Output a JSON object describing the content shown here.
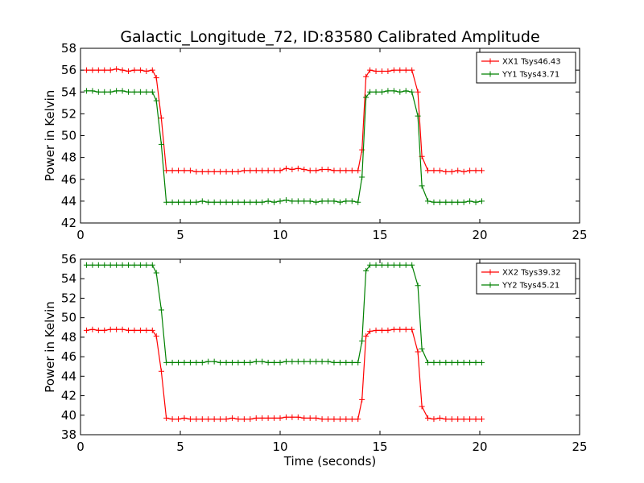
{
  "chart_data": [
    {
      "type": "line",
      "title": "Galactic_Longitude_72, ID:83580 Calibrated Amplitude",
      "xlabel": "",
      "ylabel": "Power in Kelvin",
      "xlim": [
        0,
        25
      ],
      "ylim": [
        42,
        58
      ],
      "xticks": [
        0,
        5,
        10,
        15,
        20,
        25
      ],
      "yticks": [
        42,
        44,
        46,
        48,
        50,
        52,
        54,
        56,
        58
      ],
      "legend_position": "top-right",
      "x": [
        0.3,
        0.6,
        0.9,
        1.2,
        1.5,
        1.8,
        2.1,
        2.4,
        2.7,
        3.0,
        3.3,
        3.6,
        3.8,
        4.05,
        4.3,
        4.6,
        4.9,
        5.2,
        5.5,
        5.8,
        6.1,
        6.4,
        6.7,
        7.0,
        7.3,
        7.6,
        7.9,
        8.2,
        8.5,
        8.8,
        9.1,
        9.4,
        9.7,
        10.0,
        10.3,
        10.6,
        10.9,
        11.2,
        11.5,
        11.8,
        12.1,
        12.4,
        12.7,
        13.0,
        13.3,
        13.6,
        13.9,
        14.1,
        14.3,
        14.5,
        14.8,
        15.1,
        15.4,
        15.7,
        16.0,
        16.3,
        16.6,
        16.9,
        17.1,
        17.4,
        17.7,
        18.0,
        18.3,
        18.6,
        18.9,
        19.2,
        19.5,
        19.8,
        20.1
      ],
      "series": [
        {
          "name": "XX1 Tsys46.43",
          "color": "#ff0000",
          "values": [
            56.0,
            56.0,
            56.0,
            56.0,
            56.0,
            56.1,
            56.0,
            55.9,
            56.0,
            56.0,
            55.9,
            56.0,
            55.3,
            51.6,
            46.8,
            46.8,
            46.8,
            46.8,
            46.8,
            46.7,
            46.7,
            46.7,
            46.7,
            46.7,
            46.7,
            46.7,
            46.7,
            46.8,
            46.8,
            46.8,
            46.8,
            46.8,
            46.8,
            46.8,
            47.0,
            46.9,
            47.0,
            46.9,
            46.8,
            46.8,
            46.9,
            46.9,
            46.8,
            46.8,
            46.8,
            46.8,
            46.8,
            48.7,
            55.4,
            56.0,
            55.9,
            55.9,
            55.9,
            56.0,
            56.0,
            56.0,
            56.0,
            54.0,
            48.1,
            46.8,
            46.8,
            46.8,
            46.7,
            46.7,
            46.8,
            46.7,
            46.8,
            46.8,
            46.8
          ]
        },
        {
          "name": "YY1 Tsys43.71",
          "color": "#008000",
          "values": [
            54.1,
            54.1,
            54.0,
            54.0,
            54.0,
            54.1,
            54.1,
            54.0,
            54.0,
            54.0,
            54.0,
            54.0,
            53.2,
            49.2,
            43.9,
            43.9,
            43.9,
            43.9,
            43.9,
            43.9,
            44.0,
            43.9,
            43.9,
            43.9,
            43.9,
            43.9,
            43.9,
            43.9,
            43.9,
            43.9,
            43.9,
            44.0,
            43.9,
            44.0,
            44.1,
            44.0,
            44.0,
            44.0,
            44.0,
            43.9,
            44.0,
            44.0,
            44.0,
            43.9,
            44.0,
            44.0,
            43.9,
            46.2,
            53.5,
            54.0,
            54.0,
            54.0,
            54.1,
            54.1,
            54.0,
            54.1,
            54.0,
            51.8,
            45.4,
            44.0,
            43.9,
            43.9,
            43.9,
            43.9,
            43.9,
            43.9,
            44.0,
            43.9,
            44.0
          ]
        }
      ]
    },
    {
      "type": "line",
      "title": "",
      "xlabel": "Time (seconds)",
      "ylabel": "Power in Kelvin",
      "xlim": [
        0,
        25
      ],
      "ylim": [
        38,
        56
      ],
      "xticks": [
        0,
        5,
        10,
        15,
        20,
        25
      ],
      "yticks": [
        38,
        40,
        42,
        44,
        46,
        48,
        50,
        52,
        54,
        56
      ],
      "legend_position": "top-right",
      "x": [
        0.3,
        0.6,
        0.9,
        1.2,
        1.5,
        1.8,
        2.1,
        2.4,
        2.7,
        3.0,
        3.3,
        3.6,
        3.8,
        4.05,
        4.3,
        4.6,
        4.9,
        5.2,
        5.5,
        5.8,
        6.1,
        6.4,
        6.7,
        7.0,
        7.3,
        7.6,
        7.9,
        8.2,
        8.5,
        8.8,
        9.1,
        9.4,
        9.7,
        10.0,
        10.3,
        10.6,
        10.9,
        11.2,
        11.5,
        11.8,
        12.1,
        12.4,
        12.7,
        13.0,
        13.3,
        13.6,
        13.9,
        14.1,
        14.3,
        14.5,
        14.8,
        15.1,
        15.4,
        15.7,
        16.0,
        16.3,
        16.6,
        16.9,
        17.1,
        17.4,
        17.7,
        18.0,
        18.3,
        18.6,
        18.9,
        19.2,
        19.5,
        19.8,
        20.1
      ],
      "series": [
        {
          "name": "XX2 Tsys39.32",
          "color": "#ff0000",
          "values": [
            48.7,
            48.8,
            48.7,
            48.7,
            48.8,
            48.8,
            48.8,
            48.7,
            48.7,
            48.7,
            48.7,
            48.7,
            48.1,
            44.5,
            39.7,
            39.6,
            39.6,
            39.7,
            39.6,
            39.6,
            39.6,
            39.6,
            39.6,
            39.6,
            39.6,
            39.7,
            39.6,
            39.6,
            39.6,
            39.7,
            39.7,
            39.7,
            39.7,
            39.7,
            39.8,
            39.8,
            39.8,
            39.7,
            39.7,
            39.7,
            39.6,
            39.6,
            39.6,
            39.6,
            39.6,
            39.6,
            39.6,
            41.6,
            48.1,
            48.6,
            48.7,
            48.7,
            48.7,
            48.8,
            48.8,
            48.8,
            48.8,
            46.5,
            40.9,
            39.7,
            39.6,
            39.7,
            39.6,
            39.6,
            39.6,
            39.6,
            39.6,
            39.6,
            39.6
          ]
        },
        {
          "name": "YY2 Tsys45.21",
          "color": "#008000",
          "values": [
            55.4,
            55.4,
            55.4,
            55.4,
            55.4,
            55.4,
            55.4,
            55.4,
            55.4,
            55.4,
            55.4,
            55.4,
            54.6,
            50.8,
            45.4,
            45.4,
            45.4,
            45.4,
            45.4,
            45.4,
            45.4,
            45.5,
            45.5,
            45.4,
            45.4,
            45.4,
            45.4,
            45.4,
            45.4,
            45.5,
            45.5,
            45.4,
            45.4,
            45.4,
            45.5,
            45.5,
            45.5,
            45.5,
            45.5,
            45.5,
            45.5,
            45.5,
            45.4,
            45.4,
            45.4,
            45.4,
            45.4,
            47.6,
            54.8,
            55.4,
            55.4,
            55.4,
            55.4,
            55.4,
            55.4,
            55.4,
            55.4,
            53.3,
            46.8,
            45.4,
            45.4,
            45.4,
            45.4,
            45.4,
            45.4,
            45.4,
            45.4,
            45.4,
            45.4
          ]
        }
      ]
    }
  ]
}
